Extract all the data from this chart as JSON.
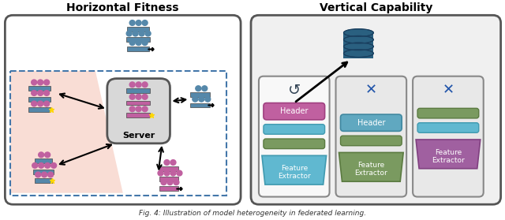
{
  "title_left": "Horizontal Fitness",
  "title_right": "Vertical Capability",
  "caption": "Fig. 4: Illustration of model heterogeneity in federated learning.",
  "bg_color": "#ffffff",
  "left_panel_bg": "#ffffff",
  "left_panel_border": "#555555",
  "pink_region_color": "#f9ddd5",
  "pink_region_border": "#555555",
  "dashed_border_color": "#4477aa",
  "server_box_color": "#d0d0d0",
  "server_text": "Server",
  "right_panel_bg": "#eeeeee",
  "right_panel_border": "#555555",
  "col1_bg": "#f5f5f5",
  "col2_bg": "#e8e8e8",
  "col3_bg": "#e0e0e0",
  "header_pink_color": "#c060a0",
  "header_blue_color": "#60a8c0",
  "feature_extractor_blue_color": "#60b8d0",
  "feature_extractor_green_color": "#7a9a60",
  "feature_extractor_purple_color": "#a060a0",
  "small_rect_blue": "#5588aa",
  "small_rect_pink": "#c060a0",
  "teal_stack_color": "#2a6080",
  "arrow_color": "#111111",
  "check_color": "#2255aa",
  "cross_color": "#2255aa"
}
